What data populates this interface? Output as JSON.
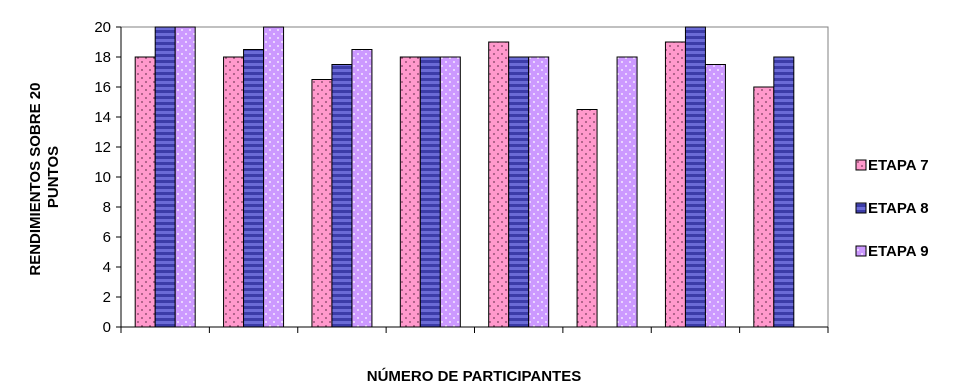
{
  "chart_data": {
    "type": "bar",
    "title": "",
    "xlabel": "NÚMERO DE PARTICIPANTES",
    "ylabel_lines": [
      "RENDIMIENTOS SOBRE 20",
      "PUNTOS"
    ],
    "ylim": [
      0,
      20
    ],
    "yticks": [
      0,
      2,
      4,
      6,
      8,
      10,
      12,
      14,
      16,
      18,
      20
    ],
    "categories": [
      "",
      "",
      "",
      "",
      "",
      "",
      "",
      ""
    ],
    "series": [
      {
        "name": "ETAPA 7",
        "color": "#ff99cc",
        "pattern": "dots",
        "values": [
          18,
          18,
          16.5,
          18,
          19,
          14.5,
          19,
          16
        ]
      },
      {
        "name": "ETAPA 8",
        "color": "#6b6bd6",
        "pattern": "stripes",
        "values": [
          20,
          18.5,
          17.5,
          18,
          18,
          null,
          20,
          18
        ]
      },
      {
        "name": "ETAPA 9",
        "color": "#cc99ff",
        "pattern": "dots",
        "values": [
          20,
          20,
          18.5,
          18,
          18,
          18,
          17.5,
          null
        ]
      }
    ],
    "legend_position": "right",
    "grid": false
  }
}
